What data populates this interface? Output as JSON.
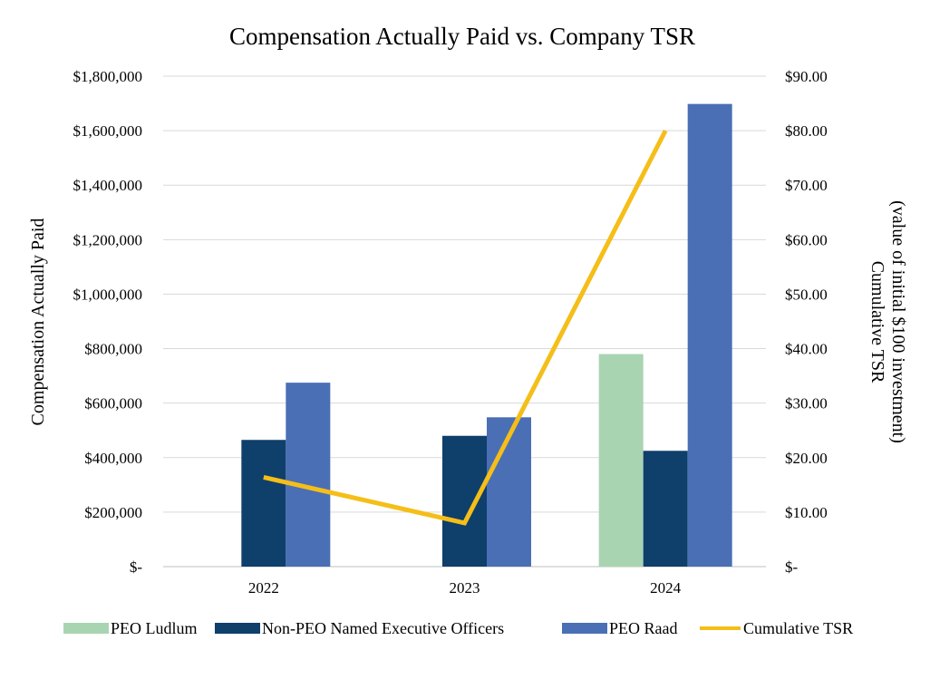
{
  "chart_data": {
    "type": "bar",
    "title": "Compensation Actually Paid vs. Company TSR",
    "categories": [
      "2022",
      "2023",
      "2024"
    ],
    "ylabel": "Compensation Actually Paid",
    "y2label_line1": "Cumulative TSR",
    "y2label_line2": "(value of initial $100 investment)",
    "ylim": [
      0,
      1800000
    ],
    "y2lim": [
      0,
      90
    ],
    "yticks": [
      0,
      200000,
      400000,
      600000,
      800000,
      1000000,
      1200000,
      1400000,
      1600000,
      1800000
    ],
    "ytick_labels": [
      "$-",
      "$200,000",
      "$400,000",
      "$600,000",
      "$800,000",
      "$1,000,000",
      "$1,200,000",
      "$1,400,000",
      "$1,600,000",
      "$1,800,000"
    ],
    "y2ticks": [
      0,
      10,
      20,
      30,
      40,
      50,
      60,
      70,
      80,
      90
    ],
    "y2tick_labels": [
      "$-",
      "$10.00",
      "$20.00",
      "$30.00",
      "$40.00",
      "$50.00",
      "$60.00",
      "$70.00",
      "$80.00",
      "$90.00"
    ],
    "series": [
      {
        "name": "PEO Ludlum",
        "kind": "bar",
        "color": "#a9d4b2",
        "values": [
          null,
          null,
          780000
        ]
      },
      {
        "name": "Non-PEO Named Executive Officers",
        "kind": "bar",
        "color": "#0f3f6b",
        "values": [
          465000,
          480000,
          425000
        ]
      },
      {
        "name": "PEO Raad",
        "kind": "bar",
        "color": "#4a6fb5",
        "values": [
          675000,
          548000,
          1698000
        ]
      },
      {
        "name": "Cumulative TSR",
        "kind": "line",
        "axis": "right",
        "color": "#f5be18",
        "values": [
          16.4,
          8.0,
          80.0
        ]
      }
    ],
    "legend_position": "bottom",
    "grid": true
  }
}
